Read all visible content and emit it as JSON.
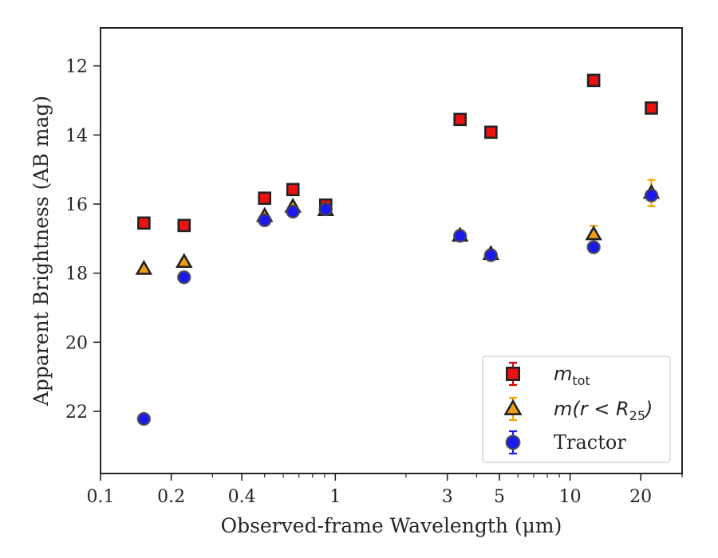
{
  "chart_data": {
    "type": "scatter",
    "xlabel": "Observed-frame Wavelength (μm)",
    "ylabel": "Apparent Brightness (AB mag)",
    "xscale": "log",
    "xlim": [
      0.1,
      30
    ],
    "ylim": [
      23.8,
      10.9
    ],
    "y_inverted": true,
    "x_ticks": [
      {
        "value": 0.1,
        "label": "0.1"
      },
      {
        "value": 0.2,
        "label": "0.2"
      },
      {
        "value": 0.4,
        "label": "0.4"
      },
      {
        "value": 1,
        "label": "1"
      },
      {
        "value": 3,
        "label": "3"
      },
      {
        "value": 5,
        "label": "5"
      },
      {
        "value": 10,
        "label": "10"
      },
      {
        "value": 20,
        "label": "20"
      }
    ],
    "y_ticks": [
      {
        "value": 12,
        "label": "12"
      },
      {
        "value": 14,
        "label": "14"
      },
      {
        "value": 16,
        "label": "16"
      },
      {
        "value": 18,
        "label": "18"
      },
      {
        "value": 20,
        "label": "20"
      },
      {
        "value": 22,
        "label": "22"
      }
    ],
    "legend_position": "lower-right",
    "grid": false,
    "series": [
      {
        "name": "m_tot",
        "legend_main": "m",
        "legend_sub": "tot",
        "marker": "square",
        "fill": "#ee1111",
        "edge": "#222222",
        "error_color": "#dd0000",
        "points": [
          {
            "x": 0.153,
            "y": 16.55,
            "err": 0.05
          },
          {
            "x": 0.227,
            "y": 16.62,
            "err": 0.05
          },
          {
            "x": 0.5,
            "y": 15.83,
            "err": 0.05
          },
          {
            "x": 0.66,
            "y": 15.58,
            "err": 0.05
          },
          {
            "x": 0.91,
            "y": 16.03,
            "err": 0.05
          },
          {
            "x": 3.4,
            "y": 13.55,
            "err": 0.05
          },
          {
            "x": 4.6,
            "y": 13.92,
            "err": 0.05
          },
          {
            "x": 12.6,
            "y": 12.42,
            "err": 0.05
          },
          {
            "x": 22.2,
            "y": 13.22,
            "err": 0.05
          }
        ]
      },
      {
        "name": "m(r<R25)",
        "legend_main": "m(r < R",
        "legend_sub": "25",
        "legend_tail": ")",
        "marker": "triangle",
        "fill": "#f39c12",
        "edge": "#222222",
        "error_color": "#f0a500",
        "points": [
          {
            "x": 0.153,
            "y": 17.88,
            "err": 0.05
          },
          {
            "x": 0.227,
            "y": 17.68,
            "err": 0.05
          },
          {
            "x": 0.5,
            "y": 16.35,
            "err": 0.05
          },
          {
            "x": 0.66,
            "y": 16.08,
            "err": 0.05
          },
          {
            "x": 0.91,
            "y": 16.18,
            "err": 0.05
          },
          {
            "x": 3.4,
            "y": 16.92,
            "err": 0.05
          },
          {
            "x": 4.6,
            "y": 17.45,
            "err": 0.05
          },
          {
            "x": 12.6,
            "y": 16.88,
            "err": 0.25
          },
          {
            "x": 22.2,
            "y": 15.68,
            "err": 0.38
          }
        ]
      },
      {
        "name": "Tractor",
        "legend_main": "Tractor",
        "marker": "circle",
        "fill": "#1a1aee",
        "edge": "#444444",
        "error_color": "#1a1aee",
        "points": [
          {
            "x": 0.153,
            "y": 22.22,
            "err": 0.05
          },
          {
            "x": 0.227,
            "y": 18.12,
            "err": 0.05
          },
          {
            "x": 0.5,
            "y": 16.47,
            "err": 0.05
          },
          {
            "x": 0.66,
            "y": 16.22,
            "err": 0.05
          },
          {
            "x": 0.91,
            "y": 16.15,
            "err": 0.05
          },
          {
            "x": 3.4,
            "y": 16.92,
            "err": 0.05
          },
          {
            "x": 4.6,
            "y": 17.48,
            "err": 0.05
          },
          {
            "x": 12.6,
            "y": 17.25,
            "err": 0.05
          },
          {
            "x": 22.2,
            "y": 15.75,
            "err": 0.05
          }
        ]
      }
    ]
  }
}
